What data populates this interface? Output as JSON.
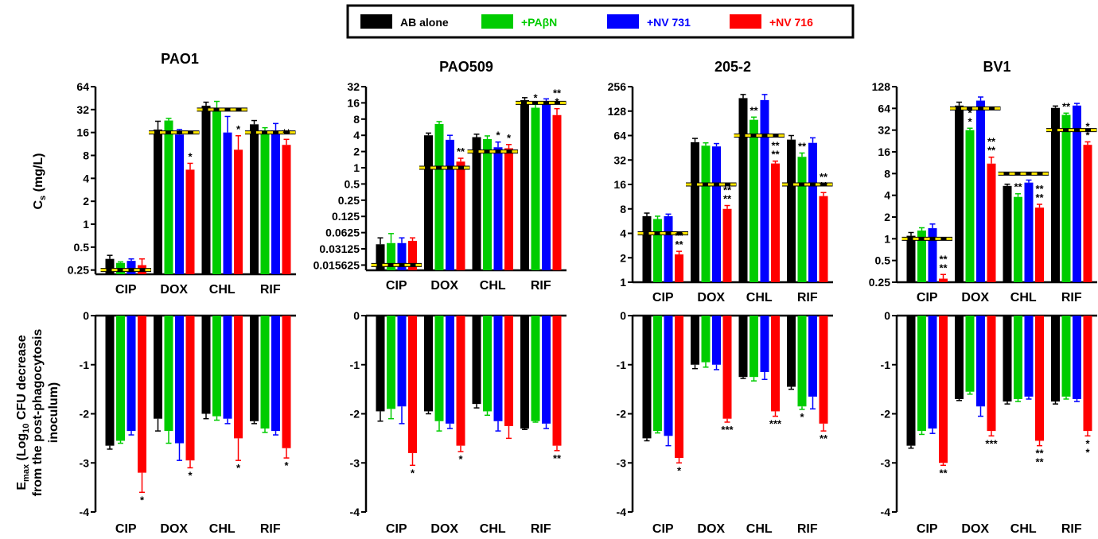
{
  "legend": {
    "entries": [
      {
        "label": "AB alone",
        "color": "#000000"
      },
      {
        "label": "+PAβN",
        "color": "#00cc00"
      },
      {
        "label": "+NV 731",
        "color": "#0000ff"
      },
      {
        "label": "+NV 716",
        "color": "#ff0000"
      }
    ]
  },
  "chart_data": [
    {
      "type": "bar",
      "panel": "PAO1 Cs",
      "title": "PAO1",
      "ylabel": "C",
      "ylabel_sub": "s",
      "ylabel_post": " (mg/L)",
      "yscale": "log2",
      "ylim": [
        0.22,
        64
      ],
      "yticks": [
        0.25,
        0.5,
        1,
        2,
        4,
        8,
        16,
        32,
        64
      ],
      "yticklabels": [
        "0.25",
        "0.5",
        "1",
        "2",
        "4",
        "8",
        "16",
        "32",
        "64"
      ],
      "categories": [
        "CIP",
        "DOX",
        "CHL",
        "RIF"
      ],
      "series": [
        {
          "name": "AB alone",
          "color": "#000000",
          "values": [
            0.35,
            17.5,
            36,
            20.5
          ],
          "errors": [
            0.04,
            5,
            4,
            2.5
          ]
        },
        {
          "name": "+PAβN",
          "color": "#00cc00",
          "values": [
            0.31,
            23,
            33,
            17
          ],
          "errors": [
            0.01,
            1.5,
            8,
            1.5
          ]
        },
        {
          "name": "+NV 731",
          "color": "#0000ff",
          "values": [
            0.33,
            15,
            16,
            17
          ],
          "errors": [
            0.02,
            2.5,
            10,
            4
          ]
        },
        {
          "name": "+NV 716",
          "color": "#ff0000",
          "values": [
            0.29,
            5.2,
            9.5,
            11
          ],
          "errors": [
            0.06,
            1.1,
            5,
            2
          ]
        }
      ],
      "mic_lines": [
        0.25,
        16,
        32,
        16
      ],
      "annotations": [
        {
          "cat": 1,
          "ser": 3,
          "text": "*"
        },
        {
          "cat": 2,
          "ser": 3,
          "text": "*"
        },
        {
          "cat": 3,
          "ser": 3,
          "text": "**"
        }
      ]
    },
    {
      "type": "bar",
      "panel": "PAO509 Cs",
      "title": "PAO509",
      "yscale": "log2",
      "ylim": [
        0.0125,
        32
      ],
      "yticks": [
        0.015625,
        0.03125,
        0.0625,
        0.125,
        0.25,
        0.5,
        1,
        2,
        4,
        8,
        16,
        32
      ],
      "yticklabels": [
        "0.015625",
        "0.03125",
        "0.0625",
        "0.125",
        "0.25",
        "0.5",
        "1",
        "2",
        "4",
        "8",
        "16",
        "32"
      ],
      "categories": [
        "CIP",
        "DOX",
        "CHL",
        "RIF"
      ],
      "series": [
        {
          "name": "AB alone",
          "color": "#000000",
          "values": [
            0.038,
            4,
            3.7,
            18
          ],
          "errors": [
            0.012,
            0.4,
            0.5,
            2
          ]
        },
        {
          "name": "+PAβN",
          "color": "#00cc00",
          "values": [
            0.04,
            6.5,
            3.4,
            13
          ],
          "errors": [
            0.02,
            0.7,
            0.5,
            2
          ]
        },
        {
          "name": "+NV 731",
          "color": "#0000ff",
          "values": [
            0.04,
            3.3,
            2.4,
            17
          ],
          "errors": [
            0.01,
            0.7,
            0.6,
            2
          ]
        },
        {
          "name": "+NV 716",
          "color": "#ff0000",
          "values": [
            0.044,
            1.3,
            2.3,
            9.5
          ],
          "errors": [
            0.006,
            0.2,
            0.4,
            3
          ]
        }
      ],
      "mic_lines": [
        0.015625,
        1,
        2,
        16
      ],
      "annotations": [
        {
          "cat": 1,
          "ser": 3,
          "text": "**"
        },
        {
          "cat": 2,
          "ser": 2,
          "text": "*"
        },
        {
          "cat": 2,
          "ser": 3,
          "text": "*"
        },
        {
          "cat": 3,
          "ser": 1,
          "text": "*"
        },
        {
          "cat": 3,
          "ser": 3,
          "text": "*"
        },
        {
          "cat": 3,
          "ser": 3,
          "text": "**"
        }
      ]
    },
    {
      "type": "bar",
      "panel": "205-2 Cs",
      "title": "205-2",
      "yscale": "log2",
      "ylim": [
        1,
        256
      ],
      "yticks": [
        1,
        2,
        4,
        8,
        16,
        32,
        64,
        128,
        256
      ],
      "yticklabels": [
        "1",
        "2",
        "4",
        "8",
        "16",
        "32",
        "64",
        "128",
        "256"
      ],
      "categories": [
        "CIP",
        "DOX",
        "CHL",
        "RIF"
      ],
      "series": [
        {
          "name": "AB alone",
          "color": "#000000",
          "values": [
            6.5,
            53,
            185,
            57
          ],
          "errors": [
            0.6,
            6,
            20,
            7
          ]
        },
        {
          "name": "+PAβN",
          "color": "#00cc00",
          "values": [
            6,
            48,
            100,
            35
          ],
          "errors": [
            0.5,
            4,
            8,
            4
          ]
        },
        {
          "name": "+NV 731",
          "color": "#0000ff",
          "values": [
            6.5,
            47,
            175,
            52
          ],
          "errors": [
            0.4,
            4,
            30,
            8
          ]
        },
        {
          "name": "+NV 716",
          "color": "#ff0000",
          "values": [
            2.2,
            8,
            29,
            11.5
          ],
          "errors": [
            0.2,
            0.8,
            2,
            1.2
          ]
        }
      ],
      "mic_lines": [
        4,
        16,
        64,
        16
      ],
      "annotations": [
        {
          "cat": 0,
          "ser": 3,
          "text": "**"
        },
        {
          "cat": 0,
          "ser": 3,
          "text": "**"
        },
        {
          "cat": 1,
          "ser": 3,
          "text": "**"
        },
        {
          "cat": 1,
          "ser": 3,
          "text": "**"
        },
        {
          "cat": 2,
          "ser": 1,
          "text": "**"
        },
        {
          "cat": 2,
          "ser": 3,
          "text": "**"
        },
        {
          "cat": 2,
          "ser": 3,
          "text": "**"
        },
        {
          "cat": 3,
          "ser": 1,
          "text": "**"
        },
        {
          "cat": 3,
          "ser": 3,
          "text": "**"
        },
        {
          "cat": 3,
          "ser": 3,
          "text": "**"
        }
      ]
    },
    {
      "type": "bar",
      "panel": "BV1 Cs",
      "title": "BV1",
      "yscale": "log2",
      "ylim": [
        0.25,
        128
      ],
      "yticks": [
        0.25,
        0.5,
        1,
        2,
        4,
        8,
        16,
        32,
        64,
        128
      ],
      "yticklabels": [
        "0.25",
        "0.5",
        "1",
        "2",
        "4",
        "8",
        "16",
        "32",
        "64",
        "128"
      ],
      "categories": [
        "CIP",
        "DOX",
        "CHL",
        "RIF"
      ],
      "series": [
        {
          "name": "AB alone",
          "color": "#000000",
          "values": [
            1.1,
            70,
            5.4,
            65
          ],
          "errors": [
            0.12,
            8,
            0.3,
            4
          ]
        },
        {
          "name": "+PAβN",
          "color": "#00cc00",
          "values": [
            1.3,
            32,
            3.8,
            52
          ],
          "errors": [
            0.12,
            2,
            0.4,
            3
          ]
        },
        {
          "name": "+NV 731",
          "color": "#0000ff",
          "values": [
            1.4,
            82,
            6,
            70
          ],
          "errors": [
            0.2,
            10,
            0.5,
            5
          ]
        },
        {
          "name": "+NV 716",
          "color": "#ff0000",
          "values": [
            0.28,
            11,
            2.7,
            20
          ],
          "errors": [
            0.04,
            2.5,
            0.3,
            2
          ]
        }
      ],
      "mic_lines": [
        1,
        64,
        8,
        32
      ],
      "annotations": [
        {
          "cat": 0,
          "ser": 3,
          "text": "**"
        },
        {
          "cat": 0,
          "ser": 3,
          "text": "**"
        },
        {
          "cat": 1,
          "ser": 1,
          "text": "*"
        },
        {
          "cat": 1,
          "ser": 1,
          "text": "*"
        },
        {
          "cat": 1,
          "ser": 3,
          "text": "**"
        },
        {
          "cat": 1,
          "ser": 3,
          "text": "**"
        },
        {
          "cat": 2,
          "ser": 1,
          "text": "**"
        },
        {
          "cat": 2,
          "ser": 3,
          "text": "**"
        },
        {
          "cat": 2,
          "ser": 3,
          "text": "**"
        },
        {
          "cat": 3,
          "ser": 1,
          "text": "**"
        },
        {
          "cat": 3,
          "ser": 3,
          "text": "*"
        },
        {
          "cat": 3,
          "ser": 3,
          "text": "*"
        }
      ]
    },
    {
      "type": "bar",
      "panel": "PAO1 Emax",
      "ylabel_lines": [
        "E",
        "from the post-phagocytosis",
        "inoculum)"
      ],
      "ylabel_e_sub": "max",
      "ylabel_line1_mid": " (Log",
      "ylabel_line1_sub": "10",
      "ylabel_line1_post": " CFU decrease",
      "yscale": "linear",
      "ylim": [
        -4,
        0
      ],
      "yticks": [
        0,
        -1,
        -2,
        -3,
        -4
      ],
      "yticklabels": [
        "0",
        "-1",
        "-2",
        "-3",
        "-4"
      ],
      "categories": [
        "CIP",
        "DOX",
        "CHL",
        "RIF"
      ],
      "series": [
        {
          "name": "AB alone",
          "color": "#000000",
          "values": [
            -2.65,
            -2.1,
            -2.0,
            -2.15
          ],
          "errors": [
            0.07,
            0.25,
            0.1,
            0.05
          ]
        },
        {
          "name": "+PAβN",
          "color": "#00cc00",
          "values": [
            -2.55,
            -2.35,
            -2.05,
            -2.3
          ],
          "errors": [
            0.05,
            0.25,
            0.08,
            0.08
          ]
        },
        {
          "name": "+NV 731",
          "color": "#0000ff",
          "values": [
            -2.35,
            -2.6,
            -2.1,
            -2.35
          ],
          "errors": [
            0.08,
            0.35,
            0.1,
            0.08
          ]
        },
        {
          "name": "+NV 716",
          "color": "#ff0000",
          "values": [
            -3.2,
            -2.95,
            -2.5,
            -2.7
          ],
          "errors": [
            0.4,
            0.15,
            0.45,
            0.2
          ]
        }
      ],
      "annotations": [
        {
          "cat": 0,
          "ser": 3,
          "text": "*"
        },
        {
          "cat": 1,
          "ser": 3,
          "text": "*"
        },
        {
          "cat": 2,
          "ser": 3,
          "text": "*"
        },
        {
          "cat": 3,
          "ser": 3,
          "text": "*"
        }
      ]
    },
    {
      "type": "bar",
      "panel": "PAO509 Emax",
      "yscale": "linear",
      "ylim": [
        -4,
        0
      ],
      "yticks": [
        0,
        -1,
        -2,
        -3,
        -4
      ],
      "yticklabels": [
        "0",
        "-1",
        "-2",
        "-3",
        "-4"
      ],
      "categories": [
        "CIP",
        "DOX",
        "CHL",
        "RIF"
      ],
      "series": [
        {
          "name": "AB alone",
          "color": "#000000",
          "values": [
            -1.95,
            -1.95,
            -1.8,
            -2.3
          ],
          "errors": [
            0.2,
            0.05,
            0.08,
            0.02
          ]
        },
        {
          "name": "+PAβN",
          "color": "#00cc00",
          "values": [
            -1.9,
            -2.15,
            -1.95,
            -2.15
          ],
          "errors": [
            0.2,
            0.2,
            0.08,
            0.02
          ]
        },
        {
          "name": "+NV 731",
          "color": "#0000ff",
          "values": [
            -1.85,
            -2.2,
            -2.15,
            -2.2
          ],
          "errors": [
            0.35,
            0.1,
            0.2,
            0.1
          ]
        },
        {
          "name": "+NV 716",
          "color": "#ff0000",
          "values": [
            -2.8,
            -2.65,
            -2.25,
            -2.65
          ],
          "errors": [
            0.25,
            0.12,
            0.25,
            0.1
          ]
        }
      ],
      "annotations": [
        {
          "cat": 0,
          "ser": 3,
          "text": "*"
        },
        {
          "cat": 1,
          "ser": 3,
          "text": "*"
        },
        {
          "cat": 3,
          "ser": 3,
          "text": "**"
        }
      ]
    },
    {
      "type": "bar",
      "panel": "205-2 Emax",
      "yscale": "linear",
      "ylim": [
        -4,
        0
      ],
      "yticks": [
        0,
        -1,
        -2,
        -3,
        -4
      ],
      "yticklabels": [
        "0",
        "-1",
        "-2",
        "-3",
        "-4"
      ],
      "categories": [
        "CIP",
        "DOX",
        "CHL",
        "RIF"
      ],
      "series": [
        {
          "name": "AB alone",
          "color": "#000000",
          "values": [
            -2.5,
            -1.0,
            -1.25,
            -1.45
          ],
          "errors": [
            0.05,
            0.08,
            0.03,
            0.05
          ]
        },
        {
          "name": "+PAβN",
          "color": "#00cc00",
          "values": [
            -2.35,
            -0.95,
            -1.25,
            -1.85
          ],
          "errors": [
            0.04,
            0.1,
            0.08,
            0.06
          ]
        },
        {
          "name": "+NV 731",
          "color": "#0000ff",
          "values": [
            -2.45,
            -1.0,
            -1.15,
            -1.65
          ],
          "errors": [
            0.2,
            0.1,
            0.15,
            0.25
          ]
        },
        {
          "name": "+NV 716",
          "color": "#ff0000",
          "values": [
            -2.9,
            -2.1,
            -1.95,
            -2.2
          ],
          "errors": [
            0.1,
            0.07,
            0.1,
            0.15
          ]
        }
      ],
      "annotations": [
        {
          "cat": 0,
          "ser": 3,
          "text": "*"
        },
        {
          "cat": 1,
          "ser": 3,
          "text": "***"
        },
        {
          "cat": 2,
          "ser": 3,
          "text": "***"
        },
        {
          "cat": 3,
          "ser": 1,
          "text": "*"
        },
        {
          "cat": 3,
          "ser": 3,
          "text": "**"
        }
      ]
    },
    {
      "type": "bar",
      "panel": "BV1 Emax",
      "yscale": "linear",
      "ylim": [
        -4,
        0
      ],
      "yticks": [
        0,
        -1,
        -2,
        -3,
        -4
      ],
      "yticklabels": [
        "0",
        "-1",
        "-2",
        "-3",
        "-4"
      ],
      "categories": [
        "CIP",
        "DOX",
        "CHL",
        "RIF"
      ],
      "series": [
        {
          "name": "AB alone",
          "color": "#000000",
          "values": [
            -2.65,
            -1.7,
            -1.75,
            -1.75
          ],
          "errors": [
            0.05,
            0.03,
            0.05,
            0.05
          ]
        },
        {
          "name": "+PAβN",
          "color": "#00cc00",
          "values": [
            -2.35,
            -1.55,
            -1.7,
            -1.65
          ],
          "errors": [
            0.07,
            0.05,
            0.05,
            0.05
          ]
        },
        {
          "name": "+NV 731",
          "color": "#0000ff",
          "values": [
            -2.3,
            -1.85,
            -1.65,
            -1.7
          ],
          "errors": [
            0.1,
            0.2,
            0.05,
            0.05
          ]
        },
        {
          "name": "+NV 716",
          "color": "#ff0000",
          "values": [
            -3.0,
            -2.35,
            -2.55,
            -2.35
          ],
          "errors": [
            0.05,
            0.1,
            0.1,
            0.1
          ]
        }
      ],
      "annotations": [
        {
          "cat": 0,
          "ser": 3,
          "text": "**"
        },
        {
          "cat": 1,
          "ser": 3,
          "text": "***"
        },
        {
          "cat": 2,
          "ser": 3,
          "text": "**"
        },
        {
          "cat": 2,
          "ser": 3,
          "text": "**"
        },
        {
          "cat": 3,
          "ser": 3,
          "text": "*"
        },
        {
          "cat": 3,
          "ser": 3,
          "text": "*"
        }
      ]
    }
  ]
}
